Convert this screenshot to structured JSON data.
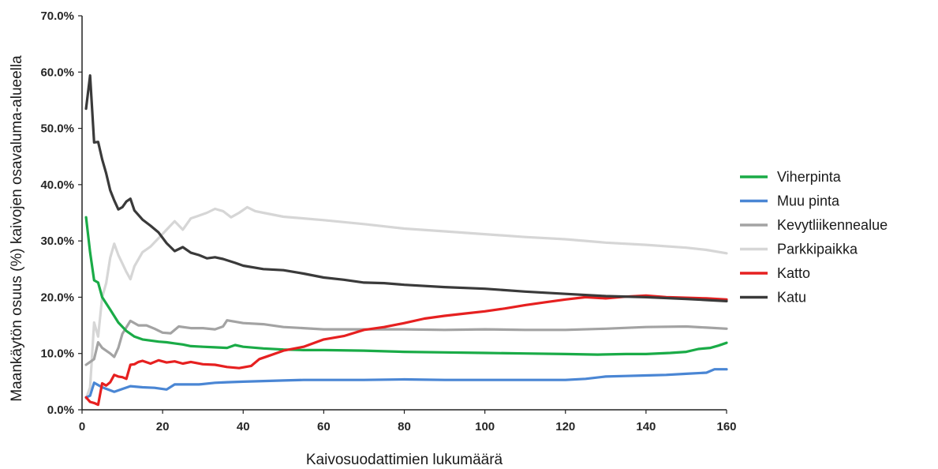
{
  "chart_data": {
    "type": "line",
    "title": "",
    "xlabel": "Kaivosuodattimien lukumäärä",
    "ylabel": "Maankäytön osuus (%) kaivojen osavaluma-alueella",
    "xlim": [
      0,
      160
    ],
    "ylim": [
      0,
      70
    ],
    "xticks": [
      0,
      20,
      40,
      60,
      80,
      100,
      120,
      140,
      160
    ],
    "xtick_labels": [
      "0",
      "20",
      "40",
      "60",
      "80",
      "100",
      "120",
      "140",
      "160"
    ],
    "yticks": [
      0,
      10,
      20,
      30,
      40,
      50,
      60,
      70
    ],
    "ytick_labels": [
      "0.0%",
      "10.0%",
      "20.0%",
      "30.0%",
      "40.0%",
      "50.0%",
      "60.0%",
      "70.0%"
    ],
    "grid": false,
    "legend_position": "right",
    "series": [
      {
        "name": "Viherpinta",
        "color": "#1aab47",
        "points": [
          [
            1,
            34.2
          ],
          [
            2,
            28
          ],
          [
            3,
            23
          ],
          [
            4,
            22.6
          ],
          [
            5,
            20
          ],
          [
            7,
            17.8
          ],
          [
            9,
            15.5
          ],
          [
            11,
            14
          ],
          [
            13,
            13
          ],
          [
            15,
            12.5
          ],
          [
            17,
            12.3
          ],
          [
            19,
            12.1
          ],
          [
            21,
            12
          ],
          [
            23,
            11.8
          ],
          [
            25,
            11.6
          ],
          [
            27,
            11.3
          ],
          [
            30,
            11.2
          ],
          [
            33,
            11.1
          ],
          [
            36,
            11
          ],
          [
            38,
            11.5
          ],
          [
            40,
            11.2
          ],
          [
            45,
            10.9
          ],
          [
            50,
            10.7
          ],
          [
            55,
            10.6
          ],
          [
            60,
            10.6
          ],
          [
            70,
            10.5
          ],
          [
            80,
            10.3
          ],
          [
            90,
            10.2
          ],
          [
            100,
            10.1
          ],
          [
            110,
            10
          ],
          [
            120,
            9.9
          ],
          [
            128,
            9.8
          ],
          [
            135,
            9.9
          ],
          [
            140,
            9.9
          ],
          [
            146,
            10.1
          ],
          [
            150,
            10.3
          ],
          [
            153,
            10.8
          ],
          [
            156,
            11.0
          ],
          [
            158,
            11.4
          ],
          [
            160,
            11.9
          ]
        ]
      },
      {
        "name": "Muu pinta",
        "color": "#4a86d4",
        "points": [
          [
            1,
            2.2
          ],
          [
            2,
            2.5
          ],
          [
            3,
            4.8
          ],
          [
            5,
            4
          ],
          [
            8,
            3.2
          ],
          [
            10,
            3.7
          ],
          [
            12,
            4.2
          ],
          [
            15,
            4
          ],
          [
            18,
            3.9
          ],
          [
            21,
            3.6
          ],
          [
            23,
            4.5
          ],
          [
            26,
            4.5
          ],
          [
            29,
            4.5
          ],
          [
            33,
            4.8
          ],
          [
            36,
            4.9
          ],
          [
            40,
            5
          ],
          [
            45,
            5.1
          ],
          [
            50,
            5.2
          ],
          [
            55,
            5.3
          ],
          [
            60,
            5.3
          ],
          [
            70,
            5.3
          ],
          [
            80,
            5.4
          ],
          [
            90,
            5.3
          ],
          [
            100,
            5.3
          ],
          [
            110,
            5.3
          ],
          [
            120,
            5.3
          ],
          [
            125,
            5.5
          ],
          [
            130,
            5.9
          ],
          [
            135,
            6
          ],
          [
            140,
            6.1
          ],
          [
            145,
            6.2
          ],
          [
            150,
            6.4
          ],
          [
            155,
            6.6
          ],
          [
            157,
            7.2
          ],
          [
            160,
            7.2
          ]
        ]
      },
      {
        "name": "Kevytliikennealue",
        "color": "#a3a3a3",
        "points": [
          [
            1,
            8
          ],
          [
            2,
            8.5
          ],
          [
            3,
            9
          ],
          [
            4,
            12
          ],
          [
            5,
            11
          ],
          [
            7,
            10
          ],
          [
            8,
            9.4
          ],
          [
            9,
            11
          ],
          [
            10,
            13.5
          ],
          [
            12,
            15.8
          ],
          [
            14,
            15
          ],
          [
            16,
            15
          ],
          [
            18,
            14.4
          ],
          [
            20,
            13.7
          ],
          [
            22,
            13.6
          ],
          [
            24,
            14.8
          ],
          [
            27,
            14.5
          ],
          [
            30,
            14.5
          ],
          [
            33,
            14.3
          ],
          [
            35,
            14.8
          ],
          [
            36,
            15.9
          ],
          [
            40,
            15.4
          ],
          [
            45,
            15.2
          ],
          [
            50,
            14.7
          ],
          [
            55,
            14.5
          ],
          [
            60,
            14.3
          ],
          [
            70,
            14.3
          ],
          [
            80,
            14.3
          ],
          [
            90,
            14.2
          ],
          [
            100,
            14.3
          ],
          [
            110,
            14.2
          ],
          [
            120,
            14.2
          ],
          [
            130,
            14.4
          ],
          [
            140,
            14.7
          ],
          [
            150,
            14.8
          ],
          [
            155,
            14.6
          ],
          [
            160,
            14.4
          ]
        ]
      },
      {
        "name": "Parkkipaikka",
        "color": "#d6d6d6",
        "points": [
          [
            1,
            2
          ],
          [
            2,
            4
          ],
          [
            3,
            15.5
          ],
          [
            4,
            13
          ],
          [
            5,
            20
          ],
          [
            6,
            22.5
          ],
          [
            7,
            27
          ],
          [
            8,
            29.5
          ],
          [
            9,
            27.5
          ],
          [
            10,
            26
          ],
          [
            11,
            24.5
          ],
          [
            12,
            23.2
          ],
          [
            13,
            25.5
          ],
          [
            15,
            28
          ],
          [
            17,
            29
          ],
          [
            19,
            30.5
          ],
          [
            21,
            32
          ],
          [
            23,
            33.5
          ],
          [
            25,
            32
          ],
          [
            27,
            34
          ],
          [
            29,
            34.5
          ],
          [
            31,
            35
          ],
          [
            33,
            35.7
          ],
          [
            35,
            35.3
          ],
          [
            37,
            34.2
          ],
          [
            39,
            35
          ],
          [
            41,
            36
          ],
          [
            43,
            35.3
          ],
          [
            45,
            35
          ],
          [
            50,
            34.3
          ],
          [
            55,
            34
          ],
          [
            60,
            33.7
          ],
          [
            70,
            33
          ],
          [
            80,
            32.2
          ],
          [
            90,
            31.7
          ],
          [
            100,
            31.2
          ],
          [
            110,
            30.7
          ],
          [
            120,
            30.3
          ],
          [
            130,
            29.7
          ],
          [
            140,
            29.3
          ],
          [
            150,
            28.8
          ],
          [
            155,
            28.4
          ],
          [
            160,
            27.8
          ]
        ]
      },
      {
        "name": "Katto",
        "color": "#e62020",
        "points": [
          [
            1,
            2.2
          ],
          [
            2,
            1.4
          ],
          [
            3,
            1.2
          ],
          [
            4,
            0.9
          ],
          [
            5,
            4.7
          ],
          [
            6,
            4.3
          ],
          [
            7,
            4.9
          ],
          [
            8,
            6.2
          ],
          [
            9,
            5.9
          ],
          [
            10,
            5.8
          ],
          [
            11,
            5.5
          ],
          [
            12,
            8
          ],
          [
            13,
            8.1
          ],
          [
            14,
            8.5
          ],
          [
            15,
            8.7
          ],
          [
            17,
            8.2
          ],
          [
            19,
            8.8
          ],
          [
            21,
            8.4
          ],
          [
            23,
            8.6
          ],
          [
            25,
            8.2
          ],
          [
            27,
            8.5
          ],
          [
            30,
            8.1
          ],
          [
            33,
            8.0
          ],
          [
            36,
            7.6
          ],
          [
            39,
            7.4
          ],
          [
            42,
            7.8
          ],
          [
            44,
            9
          ],
          [
            46,
            9.5
          ],
          [
            48,
            10
          ],
          [
            50,
            10.5
          ],
          [
            55,
            11.2
          ],
          [
            60,
            12.5
          ],
          [
            65,
            13.1
          ],
          [
            70,
            14.2
          ],
          [
            75,
            14.7
          ],
          [
            80,
            15.4
          ],
          [
            85,
            16.2
          ],
          [
            90,
            16.7
          ],
          [
            95,
            17.1
          ],
          [
            100,
            17.5
          ],
          [
            105,
            18
          ],
          [
            110,
            18.6
          ],
          [
            115,
            19.1
          ],
          [
            120,
            19.6
          ],
          [
            125,
            20
          ],
          [
            130,
            19.8
          ],
          [
            135,
            20.1
          ],
          [
            140,
            20.3
          ],
          [
            145,
            20.0
          ],
          [
            150,
            19.9
          ],
          [
            155,
            19.8
          ],
          [
            160,
            19.6
          ]
        ]
      },
      {
        "name": "Katu",
        "color": "#3a3a3a",
        "points": [
          [
            1,
            53.5
          ],
          [
            2,
            59.4
          ],
          [
            3,
            47.5
          ],
          [
            4,
            47.6
          ],
          [
            5,
            44.5
          ],
          [
            6,
            42
          ],
          [
            7,
            39
          ],
          [
            8,
            37.2
          ],
          [
            9,
            35.6
          ],
          [
            10,
            36
          ],
          [
            11,
            37
          ],
          [
            12,
            37.5
          ],
          [
            13,
            35.4
          ],
          [
            15,
            33.8
          ],
          [
            17,
            32.7
          ],
          [
            19,
            31.5
          ],
          [
            21,
            29.6
          ],
          [
            23,
            28.2
          ],
          [
            25,
            28.9
          ],
          [
            27,
            27.9
          ],
          [
            29,
            27.5
          ],
          [
            31,
            26.9
          ],
          [
            33,
            27.1
          ],
          [
            35,
            26.8
          ],
          [
            38,
            26.1
          ],
          [
            40,
            25.6
          ],
          [
            45,
            25
          ],
          [
            50,
            24.8
          ],
          [
            55,
            24.2
          ],
          [
            60,
            23.5
          ],
          [
            65,
            23.1
          ],
          [
            70,
            22.6
          ],
          [
            75,
            22.5
          ],
          [
            80,
            22.2
          ],
          [
            90,
            21.8
          ],
          [
            100,
            21.5
          ],
          [
            110,
            21
          ],
          [
            120,
            20.6
          ],
          [
            130,
            20.2
          ],
          [
            140,
            20
          ],
          [
            150,
            19.7
          ],
          [
            155,
            19.5
          ],
          [
            160,
            19.3
          ]
        ]
      }
    ]
  }
}
